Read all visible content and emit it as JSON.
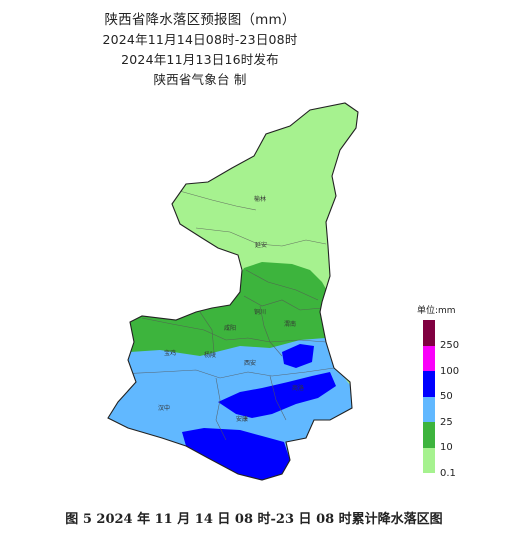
{
  "header": {
    "title": "陕西省降水落区预报图（mm）",
    "period": "2024年11月14日08时-23日08时",
    "issued": "2024年11月13日16时发布",
    "producer": "陕西省气象台 制"
  },
  "map": {
    "cities": {
      "yulin": "榆林",
      "yanan": "延安",
      "tongchuan": "铜川",
      "xianyang": "咸阳",
      "weinan": "渭南",
      "baoji": "宝鸡",
      "yangling": "杨陵",
      "xian": "西安",
      "hanzhong": "汉中",
      "ankang": "安康",
      "shangluo": "商洛"
    },
    "colors": {
      "c0_1": "#a6f28f",
      "c10": "#3db43d",
      "c25": "#61b8ff",
      "c50": "#0000ff",
      "c100": "#fa00fa",
      "c250": "#800040"
    }
  },
  "legend": {
    "title": "单位:mm",
    "levels": [
      "250",
      "100",
      "50",
      "25",
      "10",
      "0.1"
    ]
  },
  "caption": "图 5 2024 年 11 月 14 日 08 时-23 日 08 时累计降水落区图"
}
